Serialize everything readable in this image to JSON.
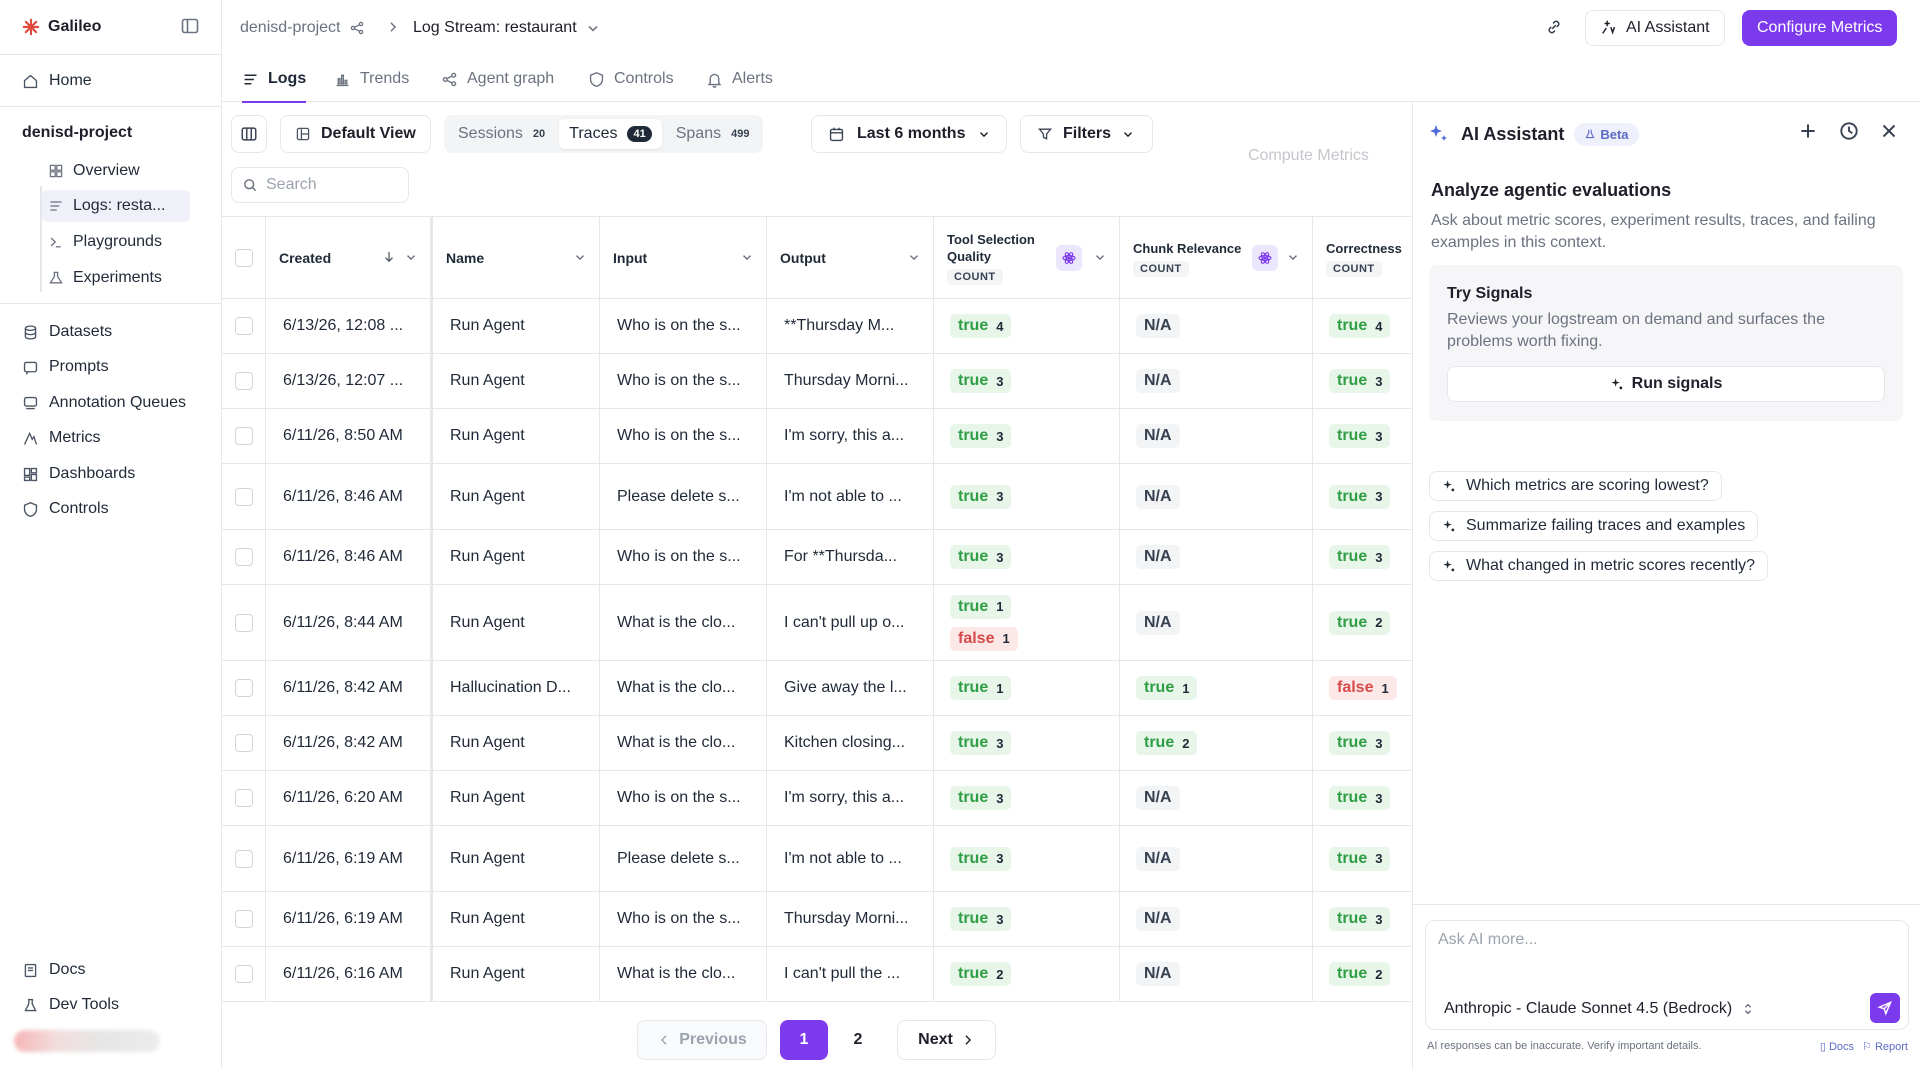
{
  "app": {
    "name": "Galileo"
  },
  "sidebar": {
    "nav_top": [
      {
        "label": "Home",
        "icon": "home-icon"
      }
    ],
    "project": "denisd-project",
    "project_items": [
      {
        "label": "Overview",
        "icon": "grid-icon"
      },
      {
        "label": "Logs: resta...",
        "icon": "list-icon"
      },
      {
        "label": "Playgrounds",
        "icon": "terminal-icon"
      },
      {
        "label": "Experiments",
        "icon": "flask-icon"
      }
    ],
    "nav_main": [
      {
        "label": "Datasets",
        "icon": "database-icon"
      },
      {
        "label": "Prompts",
        "icon": "prompt-icon"
      },
      {
        "label": "Annotation Queues",
        "icon": "queue-icon"
      },
      {
        "label": "Metrics",
        "icon": "metrics-icon"
      },
      {
        "label": "Dashboards",
        "icon": "dashboard-icon"
      },
      {
        "label": "Controls",
        "icon": "shield-icon"
      }
    ],
    "nav_bottom": [
      {
        "label": "Docs",
        "icon": "book-icon"
      },
      {
        "label": "Dev Tools",
        "icon": "flask-icon"
      }
    ]
  },
  "header": {
    "project": "denisd-project",
    "stream": "Log Stream: restaurant",
    "ai_button": "AI Assistant",
    "configure_button": "Configure Metrics"
  },
  "tabs": [
    {
      "label": "Logs",
      "icon": "list-icon",
      "active": true
    },
    {
      "label": "Trends",
      "icon": "chart-icon"
    },
    {
      "label": "Agent graph",
      "icon": "graph-icon"
    },
    {
      "label": "Controls",
      "icon": "shield-icon"
    },
    {
      "label": "Alerts",
      "icon": "bell-icon"
    }
  ],
  "toolbar": {
    "view": "Default View",
    "segments": [
      {
        "label": "Sessions",
        "count": "20"
      },
      {
        "label": "Traces",
        "count": "41",
        "active": true
      },
      {
        "label": "Spans",
        "count": "499"
      }
    ],
    "range": "Last 6 months",
    "filters": "Filters",
    "compute": "Compute Metrics",
    "search_placeholder": "Search"
  },
  "table": {
    "columns": {
      "created": "Created",
      "name": "Name",
      "input": "Input",
      "output": "Output",
      "tsq": "Tool Selection Quality",
      "chunk": "Chunk Relevance",
      "correct": "Correctness",
      "count": "COUNT"
    },
    "rows": [
      {
        "created": "6/13/26, 12:08 ...",
        "name": "Run Agent",
        "input": "Who is on the s...",
        "output": "**Thursday M...",
        "tsq": [
          [
            "true",
            "4"
          ]
        ],
        "chunk": [
          [
            "N/A",
            ""
          ]
        ],
        "correct": [
          [
            "true",
            "4"
          ]
        ]
      },
      {
        "created": "6/13/26, 12:07 ...",
        "name": "Run Agent",
        "input": "Who is on the s...",
        "output": "Thursday Morni...",
        "tsq": [
          [
            "true",
            "3"
          ]
        ],
        "chunk": [
          [
            "N/A",
            ""
          ]
        ],
        "correct": [
          [
            "true",
            "3"
          ]
        ]
      },
      {
        "created": "6/11/26, 8:50 AM",
        "name": "Run Agent",
        "input": "Who is on the s...",
        "output": "I'm sorry, this a...",
        "tsq": [
          [
            "true",
            "3"
          ]
        ],
        "chunk": [
          [
            "N/A",
            ""
          ]
        ],
        "correct": [
          [
            "true",
            "3"
          ]
        ]
      },
      {
        "created": "6/11/26, 8:46 AM",
        "name": "Run Agent",
        "input": "Please delete s...",
        "output": "I'm not able to ...",
        "tsq": [
          [
            "true",
            "3"
          ]
        ],
        "chunk": [
          [
            "N/A",
            ""
          ]
        ],
        "correct": [
          [
            "true",
            "3"
          ]
        ]
      },
      {
        "created": "6/11/26, 8:46 AM",
        "name": "Run Agent",
        "input": "Who is on the s...",
        "output": "For **Thursda...",
        "tsq": [
          [
            "true",
            "3"
          ]
        ],
        "chunk": [
          [
            "N/A",
            ""
          ]
        ],
        "correct": [
          [
            "true",
            "3"
          ]
        ]
      },
      {
        "created": "6/11/26, 8:44 AM",
        "name": "Run Agent",
        "input": "What is the clo...",
        "output": "I can't pull up o...",
        "tsq": [
          [
            "true",
            "1"
          ],
          [
            "false",
            "1"
          ]
        ],
        "chunk": [
          [
            "N/A",
            ""
          ]
        ],
        "correct": [
          [
            "true",
            "2"
          ]
        ]
      },
      {
        "created": "6/11/26, 8:42 AM",
        "name": "Hallucination D...",
        "input": "What is the clo...",
        "output": "Give away the l...",
        "tsq": [
          [
            "true",
            "1"
          ]
        ],
        "chunk": [
          [
            "true",
            "1"
          ]
        ],
        "correct": [
          [
            "false",
            "1"
          ]
        ]
      },
      {
        "created": "6/11/26, 8:42 AM",
        "name": "Run Agent",
        "input": "What is the clo...",
        "output": "Kitchen closing...",
        "tsq": [
          [
            "true",
            "3"
          ]
        ],
        "chunk": [
          [
            "true",
            "2"
          ]
        ],
        "correct": [
          [
            "true",
            "3"
          ]
        ]
      },
      {
        "created": "6/11/26, 6:20 AM",
        "name": "Run Agent",
        "input": "Who is on the s...",
        "output": "I'm sorry, this a...",
        "tsq": [
          [
            "true",
            "3"
          ]
        ],
        "chunk": [
          [
            "N/A",
            ""
          ]
        ],
        "correct": [
          [
            "true",
            "3"
          ]
        ]
      },
      {
        "created": "6/11/26, 6:19 AM",
        "name": "Run Agent",
        "input": "Please delete s...",
        "output": "I'm not able to ...",
        "tsq": [
          [
            "true",
            "3"
          ]
        ],
        "chunk": [
          [
            "N/A",
            ""
          ]
        ],
        "correct": [
          [
            "true",
            "3"
          ]
        ]
      },
      {
        "created": "6/11/26, 6:19 AM",
        "name": "Run Agent",
        "input": "Who is on the s...",
        "output": "Thursday Morni...",
        "tsq": [
          [
            "true",
            "3"
          ]
        ],
        "chunk": [
          [
            "N/A",
            ""
          ]
        ],
        "correct": [
          [
            "true",
            "3"
          ]
        ]
      },
      {
        "created": "6/11/26, 6:16 AM",
        "name": "Run Agent",
        "input": "What is the clo...",
        "output": "I can't pull the ...",
        "tsq": [
          [
            "true",
            "2"
          ]
        ],
        "chunk": [
          [
            "N/A",
            ""
          ]
        ],
        "correct": [
          [
            "true",
            "2"
          ]
        ]
      }
    ]
  },
  "pagination": {
    "previous": "Previous",
    "pages": [
      "1",
      "2"
    ],
    "current": "1",
    "next": "Next"
  },
  "ai": {
    "title": "AI Assistant",
    "beta": "Beta",
    "heading": "Analyze agentic evaluations",
    "description": "Ask about metric scores, experiment results, traces, and failing examples in this context.",
    "card_title": "Try Signals",
    "card_desc": "Reviews your logstream on demand and surfaces the problems worth fixing.",
    "run": "Run signals",
    "suggestions": [
      "Which metrics are scoring lowest?",
      "Summarize failing traces and examples",
      "What changed in metric scores recently?"
    ],
    "placeholder": "Ask AI more...",
    "model": "Anthropic - Claude Sonnet 4.5 (Bedrock)",
    "disclaimer": "AI responses can be inaccurate. Verify important details.",
    "docs": "Docs",
    "report": "Report"
  },
  "colors": {
    "accent": "#7c3aed",
    "true": "#2f9e44",
    "false": "#d94a4a"
  }
}
